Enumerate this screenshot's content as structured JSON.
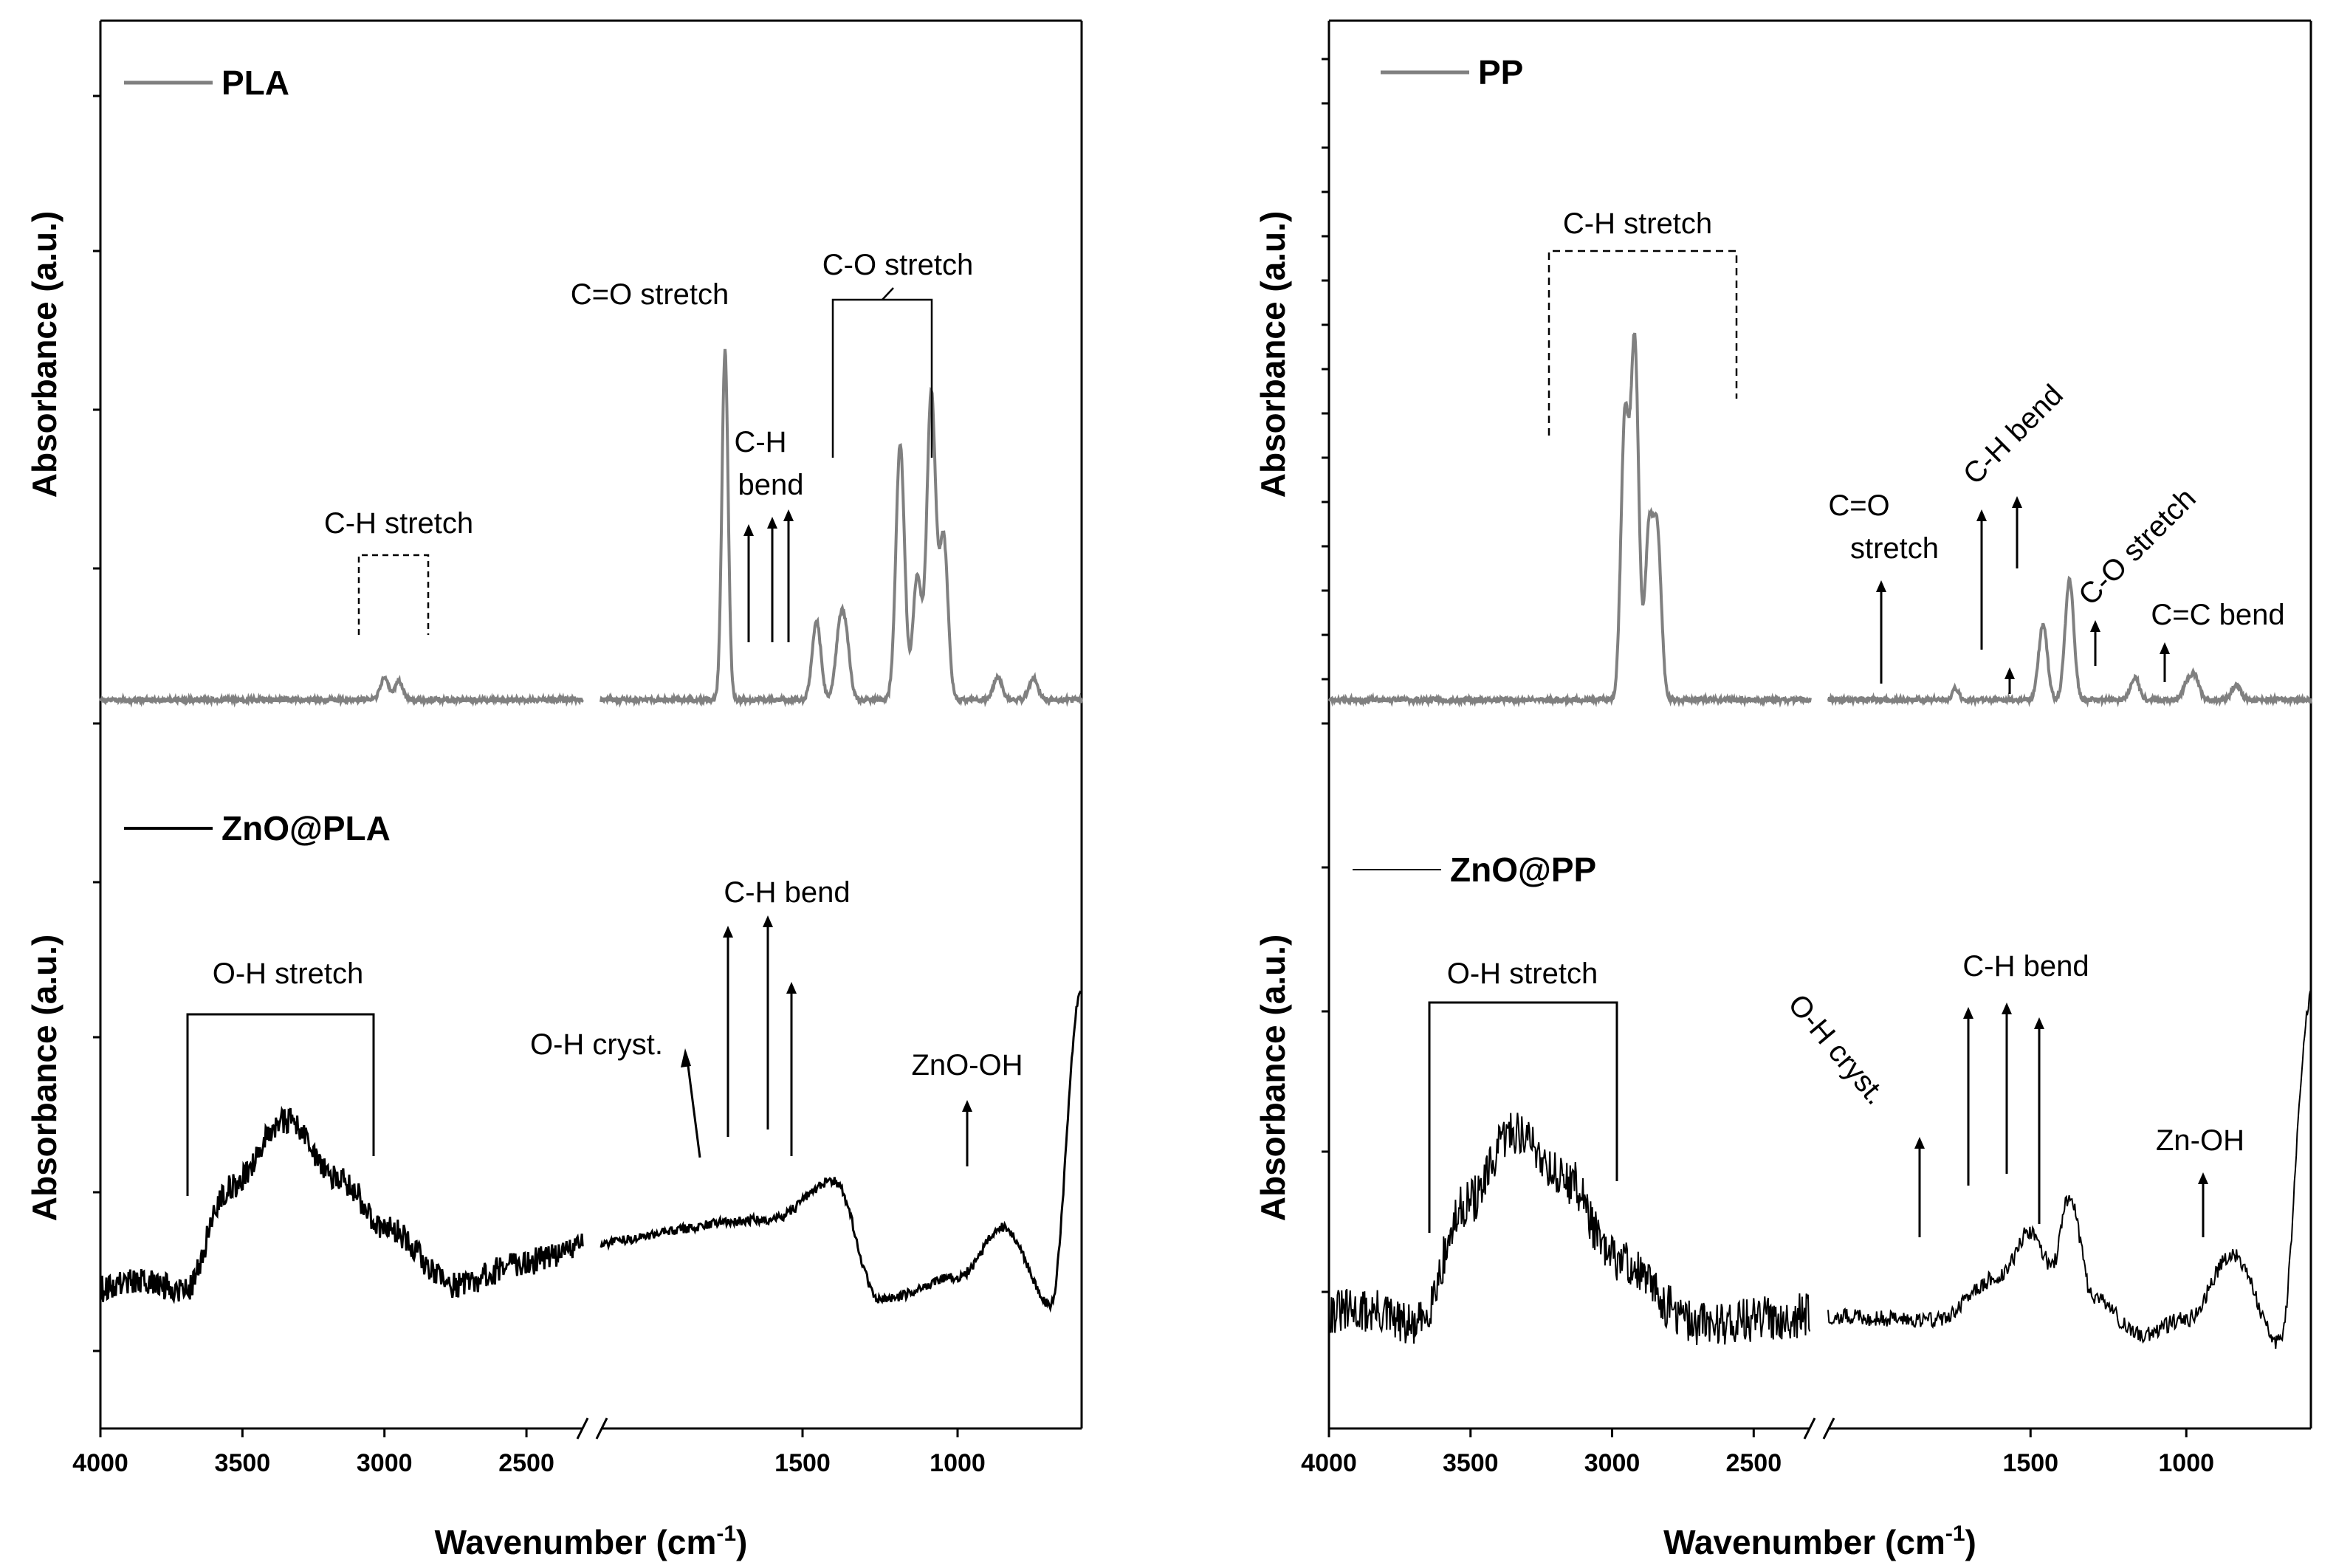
{
  "chart_data": [
    {
      "type": "line",
      "title": "",
      "xlabel": "Wavenumber (cm-1)",
      "xlabel_main": "Wavenumber (cm",
      "xlabel_sup": "-1",
      "xlabel_close": ")",
      "ylabel": "Absorbance (a.u.)",
      "xlim": [
        4000,
        600
      ],
      "x_break": [
        2300,
        2150
      ],
      "xticks": [
        "4000",
        "3500",
        "3000",
        "2500",
        "1500",
        "1000"
      ],
      "grid": false,
      "series": [
        {
          "name": "PLA",
          "color": "#808080",
          "panel": "top",
          "annotations": [
            "C-H stretch",
            "C=O stretch",
            "C-H",
            "bend",
            "C-O stretch"
          ],
          "peaks": [
            {
              "x": 3000,
              "y": 0.06
            },
            {
              "x": 2950,
              "y": 0.05
            },
            {
              "x": 1750,
              "y": 0.93
            },
            {
              "x": 1455,
              "y": 0.21
            },
            {
              "x": 1380,
              "y": 0.17
            },
            {
              "x": 1360,
              "y": 0.14
            },
            {
              "x": 1185,
              "y": 0.68
            },
            {
              "x": 1130,
              "y": 0.33
            },
            {
              "x": 1085,
              "y": 0.82
            },
            {
              "x": 1045,
              "y": 0.43
            },
            {
              "x": 870,
              "y": 0.06
            },
            {
              "x": 755,
              "y": 0.06
            }
          ]
        },
        {
          "name": "ZnO@PLA",
          "color": "#000000",
          "panel": "bottom",
          "annotations": [
            "O-H stretch",
            "O-H cryst.",
            "C-H bend",
            "ZnO-OH"
          ],
          "shape": [
            {
              "x": 4000,
              "y": 0.22
            },
            {
              "x": 3900,
              "y": 0.24
            },
            {
              "x": 3700,
              "y": 0.22
            },
            {
              "x": 3550,
              "y": 0.48
            },
            {
              "x": 3350,
              "y": 0.66
            },
            {
              "x": 3150,
              "y": 0.5
            },
            {
              "x": 3000,
              "y": 0.38
            },
            {
              "x": 2750,
              "y": 0.23
            },
            {
              "x": 2500,
              "y": 0.29
            },
            {
              "x": 2300,
              "y": 0.33
            },
            {
              "x": 1600,
              "y": 0.4
            },
            {
              "x": 1400,
              "y": 0.5
            },
            {
              "x": 1250,
              "y": 0.19
            },
            {
              "x": 1000,
              "y": 0.25
            },
            {
              "x": 850,
              "y": 0.38
            },
            {
              "x": 700,
              "y": 0.18
            },
            {
              "x": 600,
              "y": 1.0
            }
          ]
        },
        {
          "name": "PP",
          "color": "#808080",
          "panel": "top",
          "annotations": [
            "C-H stretch",
            "C=O",
            "stretch",
            "C-H bend",
            "C-O stretch",
            "C=C bend"
          ],
          "peaks": [
            {
              "x": 2955,
              "y": 0.74
            },
            {
              "x": 2920,
              "y": 0.94
            },
            {
              "x": 2870,
              "y": 0.44
            },
            {
              "x": 2840,
              "y": 0.43
            },
            {
              "x": 1740,
              "y": 0.03
            },
            {
              "x": 1460,
              "y": 0.2
            },
            {
              "x": 1375,
              "y": 0.32
            },
            {
              "x": 1165,
              "y": 0.06
            },
            {
              "x": 998,
              "y": 0.04
            },
            {
              "x": 973,
              "y": 0.06
            },
            {
              "x": 840,
              "y": 0.04
            }
          ]
        },
        {
          "name": "ZnO@PP",
          "color": "#000000",
          "panel": "bottom",
          "annotations": [
            "O-H stretch",
            "O-H cryst.",
            "C-H bend",
            "Zn-OH"
          ],
          "shape": [
            {
              "x": 4000,
              "y": 0.16
            },
            {
              "x": 3850,
              "y": 0.16
            },
            {
              "x": 3700,
              "y": 0.12
            },
            {
              "x": 3500,
              "y": 0.45
            },
            {
              "x": 3350,
              "y": 0.63
            },
            {
              "x": 3150,
              "y": 0.5
            },
            {
              "x": 3000,
              "y": 0.3
            },
            {
              "x": 2700,
              "y": 0.13
            },
            {
              "x": 2300,
              "y": 0.15
            },
            {
              "x": 1800,
              "y": 0.14
            },
            {
              "x": 1600,
              "y": 0.25
            },
            {
              "x": 1500,
              "y": 0.37
            },
            {
              "x": 1430,
              "y": 0.28
            },
            {
              "x": 1375,
              "y": 0.46
            },
            {
              "x": 1300,
              "y": 0.2
            },
            {
              "x": 1150,
              "y": 0.1
            },
            {
              "x": 1000,
              "y": 0.14
            },
            {
              "x": 850,
              "y": 0.31
            },
            {
              "x": 700,
              "y": 0.08
            },
            {
              "x": 600,
              "y": 0.98
            }
          ]
        }
      ]
    }
  ],
  "panels": {
    "left": {
      "top_legend": "PLA",
      "bottom_legend": "ZnO@PLA",
      "top_annotations": {
        "ch_stretch": "C-H stretch",
        "co_stretch": "C=O stretch",
        "ch_bend_1": "C-H",
        "ch_bend_2": "bend",
        "c_o_stretch": "C-O stretch"
      },
      "bottom_annotations": {
        "oh_stretch": "O-H stretch",
        "oh_cryst": "O-H cryst.",
        "ch_bend": "C-H bend",
        "zno_oh": "ZnO-OH"
      }
    },
    "right": {
      "top_legend": "PP",
      "bottom_legend": "ZnO@PP",
      "top_annotations": {
        "ch_stretch": "C-H stretch",
        "co_1": "C=O",
        "co_2": "stretch",
        "ch_bend": "C-H bend",
        "c_o_stretch": "C-O stretch",
        "cc_bend": "C=C bend"
      },
      "bottom_annotations": {
        "oh_stretch": "O-H stretch",
        "oh_cryst": "O-H cryst.",
        "ch_bend": "C-H bend",
        "zn_oh": "Zn-OH"
      }
    }
  },
  "colors": {
    "neat": "#808080",
    "composite": "#000000",
    "axis": "#000000"
  }
}
